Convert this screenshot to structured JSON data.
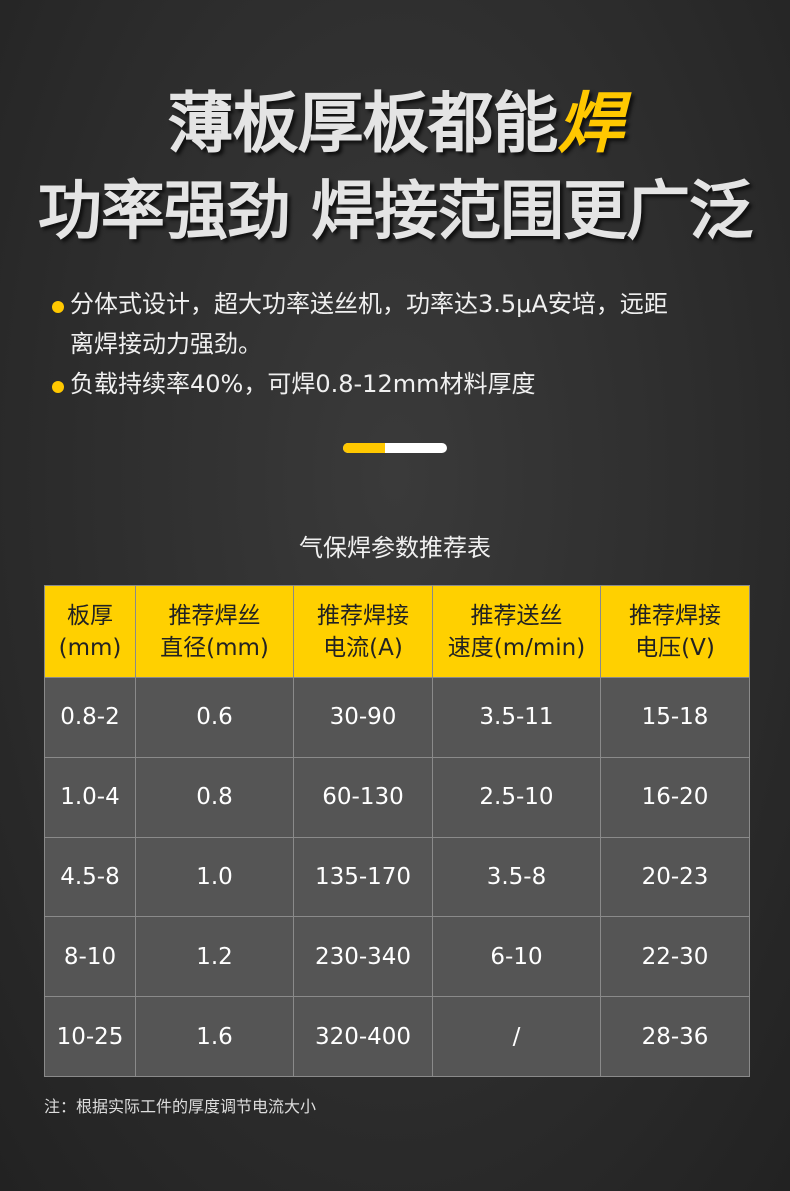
{
  "headline": {
    "line1_main": "薄板厚板都能",
    "line1_highlight": "焊",
    "line2": "功率强劲 焊接范围更广泛"
  },
  "bullets": [
    {
      "line1": "分体式设计，超大功率送丝机，功率达3.5μA安培，远距",
      "line2": "离焊接动力强劲。"
    },
    {
      "line1": "负载持续率40%，可焊0.8-12mm材料厚度"
    }
  ],
  "progress": 0.4,
  "colors": {
    "accent": "#ffd000",
    "background": "#2c2c2c"
  },
  "table": {
    "caption": "气保焊参数推荐表",
    "headers": [
      [
        "板厚",
        "(mm)"
      ],
      [
        "推荐焊丝",
        "直径(mm)"
      ],
      [
        "推荐焊接",
        "电流(A)"
      ],
      [
        "推荐送丝",
        "速度(m/min)"
      ],
      [
        "推荐焊接",
        "电压(V)"
      ]
    ],
    "rows": [
      [
        "0.8-2",
        "0.6",
        "30-90",
        "3.5-11",
        "15-18"
      ],
      [
        "1.0-4",
        "0.8",
        "60-130",
        "2.5-10",
        "16-20"
      ],
      [
        "4.5-8",
        "1.0",
        "135-170",
        "3.5-8",
        "20-23"
      ],
      [
        "8-10",
        "1.2",
        "230-340",
        "6-10",
        "22-30"
      ],
      [
        "10-25",
        "1.6",
        "320-400",
        "/",
        "28-36"
      ]
    ],
    "note": "注：根据实际工件的厚度调节电流大小"
  }
}
